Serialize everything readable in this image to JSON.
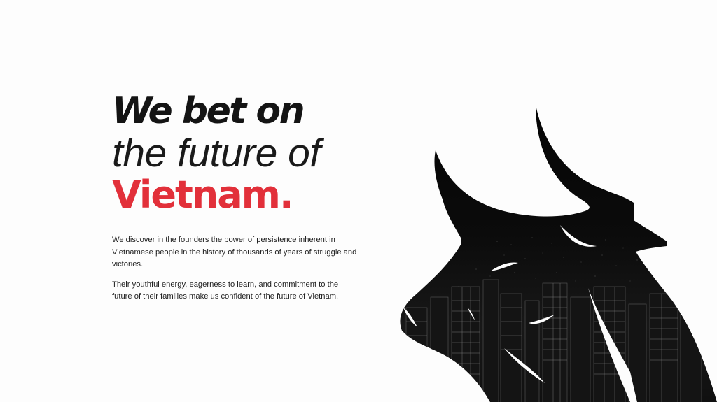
{
  "hero": {
    "line1": "We bet on",
    "line2": "the future of",
    "line3": "Vietnam.",
    "accent_color": "#e2303a"
  },
  "body": {
    "paragraph1": "We discover in the founders the power of persistence inherent in Vietnamese people in the history of thousands of years of struggle and victories.",
    "paragraph2": "Their youthful energy, eagerness to learn, and commitment  to the future of their families make us confident of the future of Vietnam."
  },
  "illustration": {
    "icon": "bull-head-city-silhouette-icon"
  }
}
